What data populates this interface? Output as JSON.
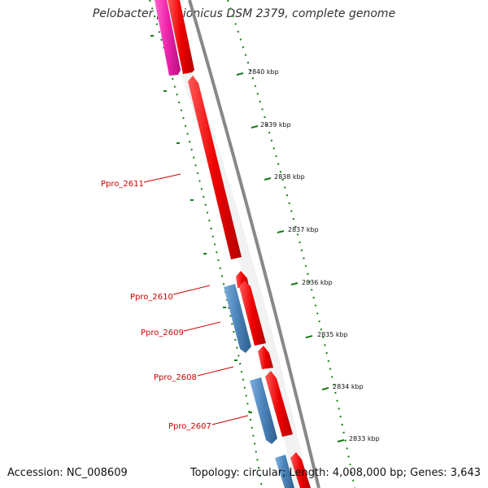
{
  "title": "Pelobacter propionicus DSM 2379, complete genome",
  "footer": {
    "accession": "Accession: NC_008609",
    "summary": "Topology: circular; Length: 4,008,000 bp; Genes: 3,643"
  },
  "scale_labels": [
    "2840 kbp",
    "2839 kbp",
    "2838 kbp",
    "2837 kbp",
    "2836 kbp",
    "2835 kbp",
    "2834 kbp",
    "2833 kbp"
  ],
  "gene_labels": [
    "Ppro_2611",
    "Ppro_2610",
    "Ppro_2609",
    "Ppro_2608",
    "Ppro_2607"
  ],
  "colors": {
    "forward_gene": "#ee0000",
    "reverse_gene": "#4a82b8",
    "rna_gene": "#ee22aa",
    "backbone": "#888888",
    "tick": "#1a7a1a",
    "label": "#cc0000"
  }
}
